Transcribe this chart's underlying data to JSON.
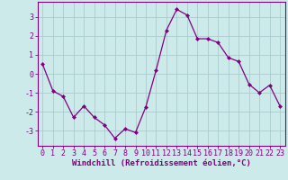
{
  "x": [
    0,
    1,
    2,
    3,
    4,
    5,
    6,
    7,
    8,
    9,
    10,
    11,
    12,
    13,
    14,
    15,
    16,
    17,
    18,
    19,
    20,
    21,
    22,
    23
  ],
  "y": [
    0.5,
    -0.9,
    -1.2,
    -2.3,
    -1.7,
    -2.3,
    -2.7,
    -3.4,
    -2.9,
    -3.1,
    -1.75,
    0.2,
    2.3,
    3.4,
    3.1,
    1.85,
    1.85,
    1.65,
    0.85,
    0.65,
    -0.55,
    -1.0,
    -0.6,
    -1.7
  ],
  "line_color": "#800080",
  "marker": "D",
  "marker_size": 2.0,
  "bg_color": "#cceaea",
  "grid_color": "#aacccc",
  "xlabel": "Windchill (Refroidissement éolien,°C)",
  "ylim": [
    -3.8,
    3.8
  ],
  "xlim": [
    -0.5,
    23.5
  ],
  "yticks": [
    -3,
    -2,
    -1,
    0,
    1,
    2,
    3
  ],
  "xticks": [
    0,
    1,
    2,
    3,
    4,
    5,
    6,
    7,
    8,
    9,
    10,
    11,
    12,
    13,
    14,
    15,
    16,
    17,
    18,
    19,
    20,
    21,
    22,
    23
  ],
  "label_color": "#800080",
  "xlabel_fontsize": 6.5,
  "tick_fontsize": 6.0,
  "linewidth": 0.9,
  "spine_color": "#800080"
}
